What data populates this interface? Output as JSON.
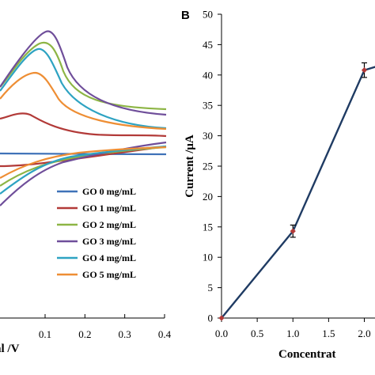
{
  "panel_b_label": "B",
  "chart_data": [
    {
      "type": "line",
      "xlabel": "al /V",
      "ylabel": "",
      "xlim": [
        -0.1,
        0.4
      ],
      "x_ticks": [
        "0.1",
        "0.2",
        "0.3",
        "0.4"
      ],
      "legend_position": "bottom-right",
      "colors": [
        "#3f72b8",
        "#b23a38",
        "#8db545",
        "#6f4e9a",
        "#2ea3c2",
        "#ee8e34"
      ],
      "series": [
        {
          "name": "GO 0 mg/mL",
          "color": "#3f72b8"
        },
        {
          "name": "GO 1 mg/mL",
          "color": "#b23a38"
        },
        {
          "name": "GO 2 mg/mL",
          "color": "#8db545"
        },
        {
          "name": "GO 3 mg/mL",
          "color": "#6f4e9a"
        },
        {
          "name": "GO 4 mg/mL",
          "color": "#2ea3c2"
        },
        {
          "name": "GO 5 mg/mL",
          "color": "#ee8e34"
        }
      ]
    },
    {
      "type": "line",
      "xlabel": "Concentrat",
      "ylabel": "Current /μA",
      "xlim": [
        0,
        2.2
      ],
      "ylim": [
        0,
        50
      ],
      "x_ticks": [
        0,
        0.5,
        1.0,
        1.5,
        2.0
      ],
      "x_tick_labels": [
        "0.0",
        "0.5",
        "1.0",
        "1.5",
        "2.0"
      ],
      "y_ticks": [
        0,
        5,
        10,
        15,
        20,
        25,
        30,
        35,
        40,
        45,
        50
      ],
      "y_tick_labels": [
        "0",
        "5",
        "10",
        "15",
        "20",
        "25",
        "30",
        "35",
        "40",
        "45",
        "50"
      ],
      "line_color": "#1f3b63",
      "marker_color": "#b23a38",
      "series": [
        {
          "x": [
            0,
            1,
            2,
            2.2
          ],
          "y": [
            0,
            14.3,
            40.8,
            41.5
          ],
          "errors": [
            0,
            1.0,
            1.2,
            0
          ]
        }
      ]
    }
  ]
}
